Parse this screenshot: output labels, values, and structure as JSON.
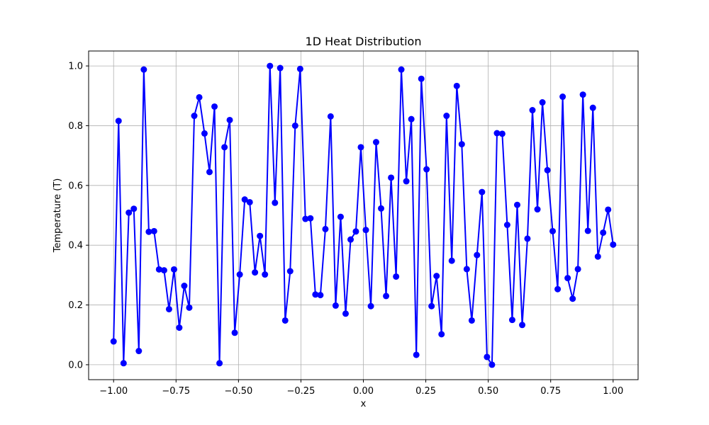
{
  "chart_data": {
    "type": "line",
    "title": "1D Heat Distribution",
    "xlabel": "x",
    "ylabel": "Temperature (T)",
    "xlim": [
      -1.1,
      1.1
    ],
    "ylim": [
      -0.05,
      1.05
    ],
    "grid": true,
    "x_ticks": [
      "−1.00",
      "−0.75",
      "−0.50",
      "−0.25",
      "0.00",
      "0.25",
      "0.50",
      "0.75",
      "1.00"
    ],
    "x_tick_values": [
      -1.0,
      -0.75,
      -0.5,
      -0.25,
      0.0,
      0.25,
      0.5,
      0.75,
      1.0
    ],
    "y_ticks": [
      "0.0",
      "0.2",
      "0.4",
      "0.6",
      "0.8",
      "1.0"
    ],
    "y_tick_values": [
      0.0,
      0.2,
      0.4,
      0.6,
      0.8,
      1.0
    ],
    "series": [
      {
        "color": "#0000ff",
        "marker": "circle",
        "x": [
          -1.0,
          -0.98,
          -0.96,
          -0.939,
          -0.919,
          -0.899,
          -0.879,
          -0.859,
          -0.838,
          -0.818,
          -0.798,
          -0.778,
          -0.758,
          -0.737,
          -0.717,
          -0.697,
          -0.677,
          -0.657,
          -0.636,
          -0.616,
          -0.596,
          -0.576,
          -0.556,
          -0.535,
          -0.515,
          -0.495,
          -0.475,
          -0.455,
          -0.434,
          -0.414,
          -0.394,
          -0.374,
          -0.354,
          -0.333,
          -0.313,
          -0.293,
          -0.273,
          -0.253,
          -0.232,
          -0.212,
          -0.192,
          -0.172,
          -0.152,
          -0.131,
          -0.111,
          -0.091,
          -0.071,
          -0.051,
          -0.03,
          -0.01,
          0.01,
          0.03,
          0.051,
          0.071,
          0.091,
          0.111,
          0.131,
          0.152,
          0.172,
          0.192,
          0.212,
          0.232,
          0.253,
          0.273,
          0.293,
          0.313,
          0.333,
          0.354,
          0.374,
          0.394,
          0.414,
          0.434,
          0.455,
          0.475,
          0.495,
          0.515,
          0.535,
          0.556,
          0.576,
          0.596,
          0.616,
          0.636,
          0.657,
          0.677,
          0.697,
          0.717,
          0.737,
          0.758,
          0.778,
          0.798,
          0.818,
          0.838,
          0.859,
          0.879,
          0.899,
          0.919,
          0.939,
          0.96,
          0.98,
          1.0
        ],
        "y": [
          0.078,
          0.816,
          0.005,
          0.509,
          0.522,
          0.046,
          0.988,
          0.445,
          0.447,
          0.319,
          0.316,
          0.186,
          0.319,
          0.124,
          0.264,
          0.191,
          0.833,
          0.895,
          0.774,
          0.645,
          0.864,
          0.005,
          0.728,
          0.819,
          0.107,
          0.302,
          0.553,
          0.544,
          0.309,
          0.431,
          0.302,
          1.0,
          0.542,
          0.993,
          0.148,
          0.313,
          0.8,
          0.99,
          0.488,
          0.49,
          0.235,
          0.233,
          0.454,
          0.831,
          0.198,
          0.495,
          0.171,
          0.419,
          0.446,
          0.728,
          0.451,
          0.196,
          0.745,
          0.523,
          0.23,
          0.626,
          0.295,
          0.988,
          0.614,
          0.822,
          0.033,
          0.957,
          0.654,
          0.196,
          0.297,
          0.102,
          0.833,
          0.348,
          0.933,
          0.738,
          0.32,
          0.148,
          0.367,
          0.578,
          0.026,
          0.0,
          0.775,
          0.773,
          0.468,
          0.15,
          0.535,
          0.133,
          0.422,
          0.852,
          0.52,
          0.878,
          0.651,
          0.447,
          0.253,
          0.897,
          0.29,
          0.221,
          0.32,
          0.904,
          0.448,
          0.86,
          0.362,
          0.442,
          0.519,
          0.402
        ]
      }
    ]
  }
}
